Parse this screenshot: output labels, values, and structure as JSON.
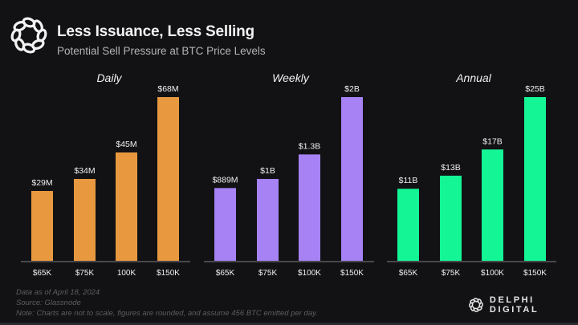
{
  "header": {
    "title": "Less Issuance, Less Selling",
    "subtitle": "Potential Sell Pressure at BTC Price Levels",
    "logo_icon": "delphi-knot-icon"
  },
  "chart_data": [
    {
      "type": "bar",
      "title": "Daily",
      "categories": [
        "$65K",
        "$75K",
        "100K",
        "$150K"
      ],
      "values": [
        29,
        34,
        45,
        68
      ],
      "unit": "USD millions",
      "data_labels": [
        "$29M",
        "$34M",
        "$45M",
        "$68M"
      ],
      "xlabel": "",
      "ylabel": "",
      "ylim": [
        0,
        100
      ],
      "color": "#E8993F",
      "grid": false,
      "legend": "none"
    },
    {
      "type": "bar",
      "title": "Weekly",
      "categories": [
        "$65K",
        "$75K",
        "$100K",
        "$150K"
      ],
      "values": [
        0.889,
        1,
        1.3,
        2
      ],
      "unit": "USD billions",
      "data_labels": [
        "$889M",
        "$1B",
        "$1.3B",
        "$2B"
      ],
      "xlabel": "",
      "ylabel": "",
      "ylim": [
        0,
        2.4
      ],
      "color": "#A682F5",
      "grid": false,
      "legend": "none"
    },
    {
      "type": "bar",
      "title": "Annual",
      "categories": [
        "$65K",
        "$75K",
        "$100K",
        "$150K"
      ],
      "values": [
        11,
        13,
        17,
        25
      ],
      "unit": "USD billions",
      "data_labels": [
        "$11B",
        "$13B",
        "$17B",
        "$25B"
      ],
      "xlabel": "",
      "ylabel": "",
      "ylim": [
        0,
        26.5
      ],
      "color": "#14F596",
      "grid": false,
      "legend": "none"
    }
  ],
  "colors": {
    "background": "#121214",
    "axis": "#5a5a5e",
    "label_text": "#f0f0f0",
    "footer_text": "#5d5d63"
  },
  "footer": {
    "lines": [
      "Data as of April 18, 2024",
      "Source: Glassnode",
      "Note: Charts are not to scale, figures are rounded, and assume 456 BTC emitted per day."
    ]
  },
  "brand": {
    "name": "DELPHI DIGITAL",
    "logo_icon": "delphi-knot-icon"
  }
}
